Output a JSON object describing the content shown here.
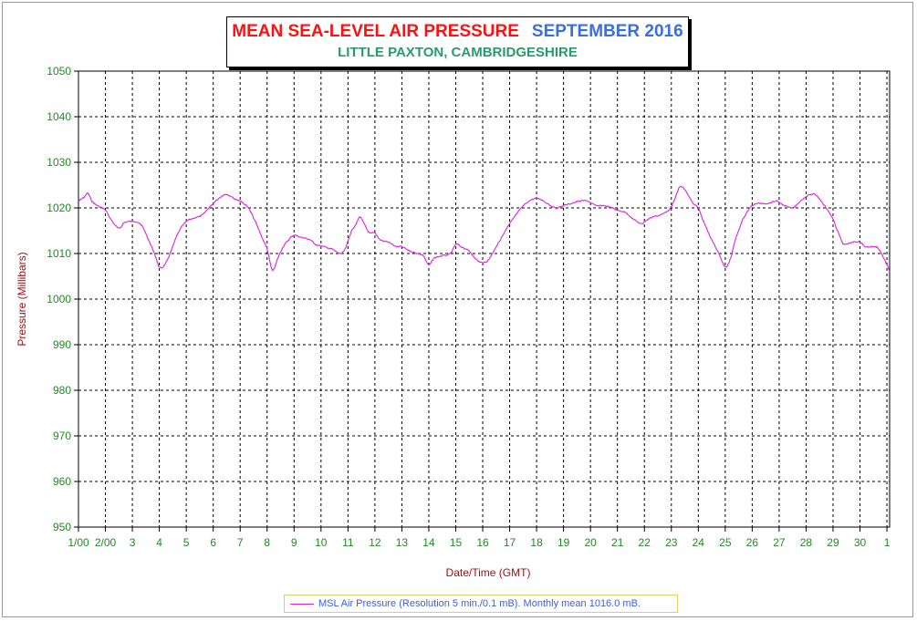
{
  "chart_data": {
    "type": "line",
    "title": "MEAN SEA-LEVEL AIR PRESSURE",
    "title_period": "SEPTEMBER 2016",
    "subtitle": "LITTLE PAXTON, CAMBRIDGESHIRE",
    "xlabel": "Date/Time (GMT)",
    "ylabel": "Pressure (Millibars)",
    "ylim": [
      950,
      1050
    ],
    "yticks": [
      "950",
      "960",
      "970",
      "980",
      "990",
      "1000",
      "1010",
      "1020",
      "1030",
      "1040",
      "1050"
    ],
    "xlim": [
      1,
      31.1
    ],
    "xticks": [
      {
        "x": 1,
        "label": "1/00"
      },
      {
        "x": 2,
        "label": "2/00"
      },
      {
        "x": 3,
        "label": "3"
      },
      {
        "x": 4,
        "label": "4"
      },
      {
        "x": 5,
        "label": "5"
      },
      {
        "x": 6,
        "label": "6"
      },
      {
        "x": 7,
        "label": "7"
      },
      {
        "x": 8,
        "label": "8"
      },
      {
        "x": 9,
        "label": "9"
      },
      {
        "x": 10,
        "label": "10"
      },
      {
        "x": 11,
        "label": "11"
      },
      {
        "x": 12,
        "label": "12"
      },
      {
        "x": 13,
        "label": "13"
      },
      {
        "x": 14,
        "label": "14"
      },
      {
        "x": 15,
        "label": "15"
      },
      {
        "x": 16,
        "label": "16"
      },
      {
        "x": 17,
        "label": "17"
      },
      {
        "x": 18,
        "label": "18"
      },
      {
        "x": 19,
        "label": "19"
      },
      {
        "x": 20,
        "label": "20"
      },
      {
        "x": 21,
        "label": "21"
      },
      {
        "x": 22,
        "label": "22"
      },
      {
        "x": 23,
        "label": "23"
      },
      {
        "x": 24,
        "label": "24"
      },
      {
        "x": 25,
        "label": "25"
      },
      {
        "x": 26,
        "label": "26"
      },
      {
        "x": 27,
        "label": "27"
      },
      {
        "x": 28,
        "label": "28"
      },
      {
        "x": 29,
        "label": "29"
      },
      {
        "x": 30,
        "label": "30"
      },
      {
        "x": 31,
        "label": "1"
      }
    ],
    "grid": true,
    "legend_position": "bottom-center",
    "series": [
      {
        "name": "MSL Air Pressure (Resolution 5 min./0.1 mB). Monthly mean 1016.0 mB.",
        "color": "#e020e0",
        "points": [
          [
            1.0,
            1021.5
          ],
          [
            1.2,
            1022.3
          ],
          [
            1.35,
            1023.2
          ],
          [
            1.5,
            1021.5
          ],
          [
            1.7,
            1020.5
          ],
          [
            2.0,
            1019.5
          ],
          [
            2.2,
            1017.5
          ],
          [
            2.5,
            1015.5
          ],
          [
            2.7,
            1016.8
          ],
          [
            3.0,
            1017.0
          ],
          [
            3.3,
            1016.5
          ],
          [
            3.6,
            1013.0
          ],
          [
            3.85,
            1009.5
          ],
          [
            4.0,
            1007.0
          ],
          [
            4.2,
            1007.5
          ],
          [
            4.4,
            1010.0
          ],
          [
            4.7,
            1014.5
          ],
          [
            5.0,
            1017.0
          ],
          [
            5.3,
            1017.8
          ],
          [
            5.6,
            1018.5
          ],
          [
            6.0,
            1021.0
          ],
          [
            6.3,
            1022.5
          ],
          [
            6.5,
            1023.0
          ],
          [
            6.8,
            1022.0
          ],
          [
            7.0,
            1021.5
          ],
          [
            7.3,
            1020.0
          ],
          [
            7.6,
            1016.5
          ],
          [
            7.85,
            1013.0
          ],
          [
            8.0,
            1011.0
          ],
          [
            8.15,
            1007.0
          ],
          [
            8.25,
            1006.5
          ],
          [
            8.4,
            1009.0
          ],
          [
            8.6,
            1011.5
          ],
          [
            8.8,
            1013.0
          ],
          [
            9.0,
            1014.0
          ],
          [
            9.3,
            1013.5
          ],
          [
            9.6,
            1013.0
          ],
          [
            9.8,
            1012.0
          ],
          [
            10.1,
            1011.5
          ],
          [
            10.4,
            1011.0
          ],
          [
            10.7,
            1010.0
          ],
          [
            10.9,
            1011.0
          ],
          [
            11.1,
            1014.5
          ],
          [
            11.3,
            1016.5
          ],
          [
            11.45,
            1018.0
          ],
          [
            11.6,
            1016.5
          ],
          [
            11.8,
            1014.5
          ],
          [
            12.0,
            1014.5
          ],
          [
            12.2,
            1013.0
          ],
          [
            12.5,
            1012.5
          ],
          [
            12.8,
            1011.5
          ],
          [
            13.0,
            1011.5
          ],
          [
            13.3,
            1010.5
          ],
          [
            13.6,
            1010.0
          ],
          [
            13.8,
            1009.5
          ],
          [
            14.0,
            1007.5
          ],
          [
            14.2,
            1009.0
          ],
          [
            14.5,
            1009.5
          ],
          [
            14.8,
            1010.0
          ],
          [
            15.0,
            1012.0
          ],
          [
            15.2,
            1011.5
          ],
          [
            15.5,
            1010.5
          ],
          [
            15.8,
            1008.5
          ],
          [
            16.0,
            1008.0
          ],
          [
            16.2,
            1008.5
          ],
          [
            16.4,
            1010.5
          ],
          [
            16.7,
            1013.5
          ],
          [
            17.0,
            1016.5
          ],
          [
            17.3,
            1019.0
          ],
          [
            17.6,
            1021.0
          ],
          [
            17.9,
            1022.0
          ],
          [
            18.1,
            1022.0
          ],
          [
            18.4,
            1021.0
          ],
          [
            18.7,
            1020.0
          ],
          [
            19.0,
            1020.5
          ],
          [
            19.3,
            1021.0
          ],
          [
            19.6,
            1021.5
          ],
          [
            19.9,
            1021.5
          ],
          [
            20.2,
            1020.5
          ],
          [
            20.5,
            1020.5
          ],
          [
            20.8,
            1020.0
          ],
          [
            21.0,
            1019.5
          ],
          [
            21.3,
            1019.0
          ],
          [
            21.6,
            1017.5
          ],
          [
            21.9,
            1016.5
          ],
          [
            22.0,
            1017.0
          ],
          [
            22.3,
            1018.0
          ],
          [
            22.6,
            1018.5
          ],
          [
            22.9,
            1019.5
          ],
          [
            23.1,
            1021.5
          ],
          [
            23.3,
            1024.5
          ],
          [
            23.5,
            1024.0
          ],
          [
            23.8,
            1021.0
          ],
          [
            24.0,
            1020.0
          ],
          [
            24.2,
            1017.0
          ],
          [
            24.5,
            1013.0
          ],
          [
            24.8,
            1009.5
          ],
          [
            25.0,
            1007.0
          ],
          [
            25.2,
            1009.0
          ],
          [
            25.4,
            1013.5
          ],
          [
            25.7,
            1018.0
          ],
          [
            26.0,
            1020.5
          ],
          [
            26.3,
            1021.0
          ],
          [
            26.6,
            1021.0
          ],
          [
            26.9,
            1021.5
          ],
          [
            27.2,
            1020.5
          ],
          [
            27.5,
            1020.0
          ],
          [
            27.7,
            1021.0
          ],
          [
            28.0,
            1022.5
          ],
          [
            28.3,
            1023.0
          ],
          [
            28.5,
            1022.0
          ],
          [
            28.8,
            1019.5
          ],
          [
            29.0,
            1017.5
          ],
          [
            29.2,
            1014.5
          ],
          [
            29.4,
            1012.0
          ],
          [
            29.7,
            1012.5
          ],
          [
            30.0,
            1012.5
          ],
          [
            30.2,
            1011.5
          ],
          [
            30.5,
            1011.5
          ],
          [
            30.7,
            1011.0
          ],
          [
            31.0,
            1007.5
          ],
          [
            31.1,
            1006.0
          ]
        ]
      }
    ]
  }
}
